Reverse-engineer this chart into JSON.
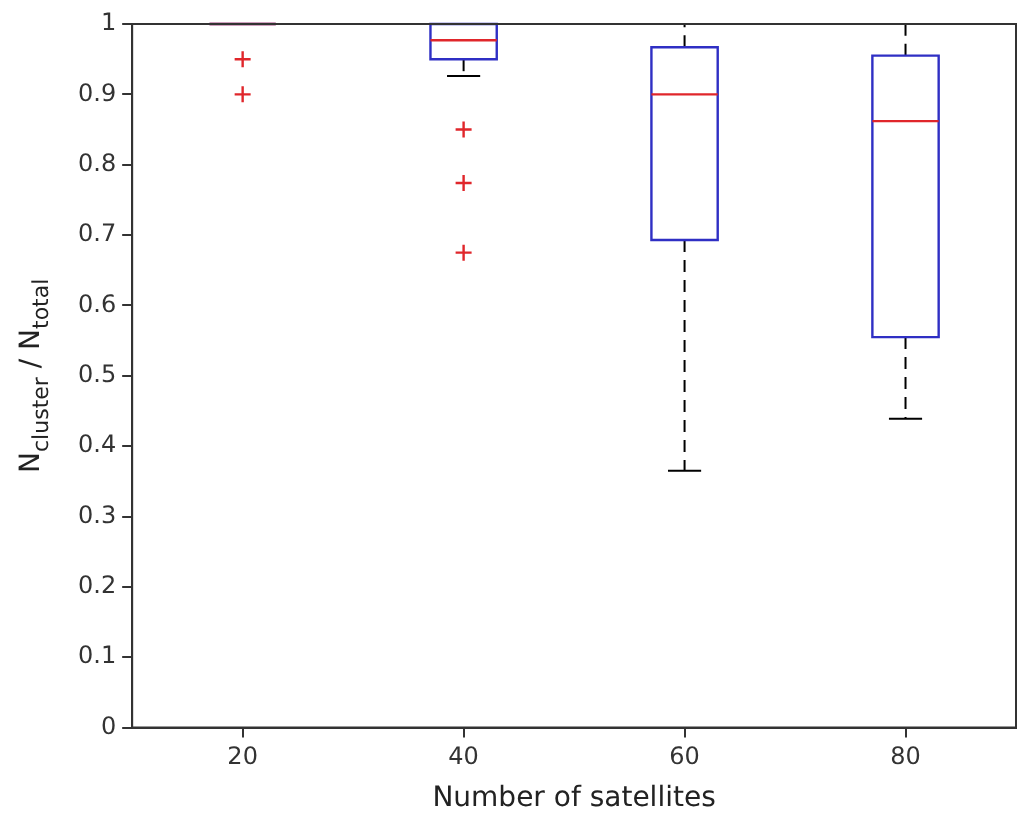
{
  "chart_data": {
    "type": "box",
    "xlabel": "Number of satellites",
    "ylabel": "N$_{cluster}$ / N$_{total}$",
    "categories": [
      "20",
      "40",
      "60",
      "80"
    ],
    "ylim": [
      0,
      1
    ],
    "yticks": [
      0,
      0.1,
      0.2,
      0.3,
      0.4,
      0.5,
      0.6,
      0.7,
      0.8,
      0.9,
      1
    ],
    "grid": false,
    "series": [
      {
        "color": "#2f2fc4",
        "boxes": [
          {
            "low": 1,
            "q1": 1,
            "median": 1,
            "q3": 1,
            "high": 1,
            "outliers": [
              0.95,
              0.9
            ]
          },
          {
            "low": 0.926,
            "q1": 0.95,
            "median": 0.977,
            "q3": 1,
            "high": 1,
            "outliers": [
              0.85,
              0.774,
              0.675
            ]
          },
          {
            "low": 0.365,
            "q1": 0.693,
            "median": 0.9,
            "q3": 0.967,
            "high": 1
          },
          {
            "low": 0.439,
            "q1": 0.555,
            "median": 0.862,
            "q3": 0.955,
            "high": 1
          }
        ]
      }
    ]
  }
}
